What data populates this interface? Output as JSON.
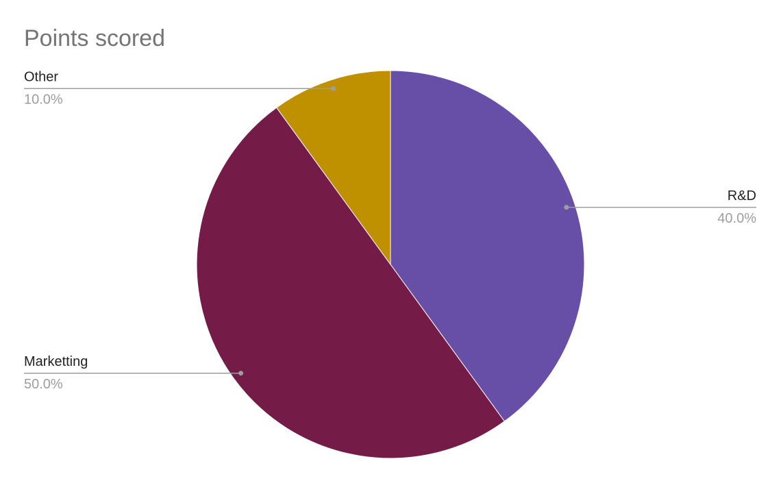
{
  "chart_data": {
    "type": "pie",
    "title": "Points scored",
    "categories": [
      "R&D",
      "Marketting",
      "Other"
    ],
    "values": [
      40,
      50,
      10
    ],
    "value_labels": [
      "40.0%",
      "50.0%",
      "10.0%"
    ],
    "colors": [
      "#674ea7",
      "#741b47",
      "#bf9000"
    ]
  }
}
